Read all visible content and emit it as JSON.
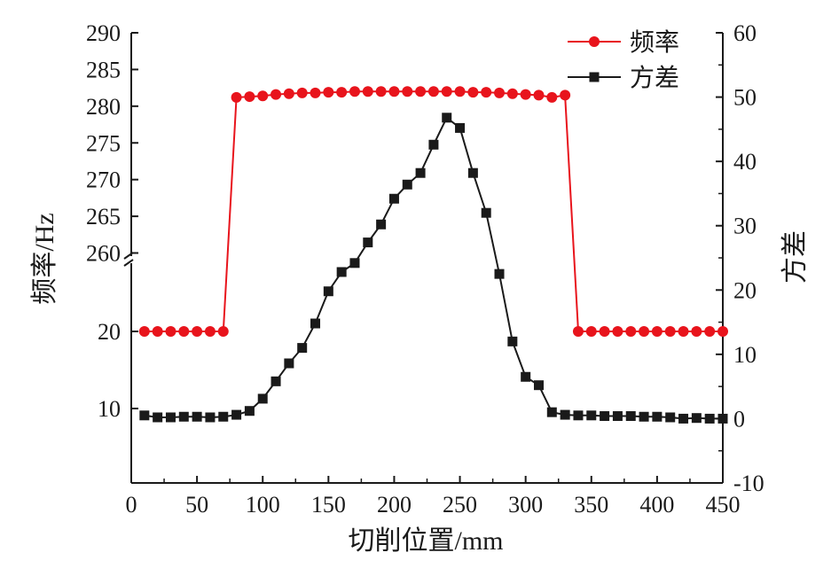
{
  "chart_data": {
    "type": "line",
    "xlabel": "切削位置/mm",
    "ylabel_left": "频率/Hz",
    "ylabel_right": "方差",
    "xlim": [
      0,
      450
    ],
    "x_ticks": [
      0,
      50,
      100,
      150,
      200,
      250,
      300,
      350,
      400,
      450
    ],
    "y_left_ticks": [
      10,
      20,
      260,
      265,
      270,
      275,
      280,
      285,
      290
    ],
    "y_left_axis_break": "between 20 and 260",
    "y_right_ticks": [
      -10,
      0,
      10,
      20,
      30,
      40,
      50,
      60
    ],
    "y_right_lim": [
      -10,
      60
    ],
    "grid": false,
    "legend_position": "top-right",
    "series": [
      {
        "name": "频率",
        "axis": "left",
        "color": "#e8141c",
        "marker": "circle",
        "x": [
          10,
          20,
          30,
          40,
          50,
          60,
          70,
          80,
          90,
          100,
          110,
          120,
          130,
          140,
          150,
          160,
          170,
          180,
          190,
          200,
          210,
          220,
          230,
          240,
          250,
          260,
          270,
          280,
          290,
          300,
          310,
          320,
          330,
          340,
          350,
          360,
          370,
          380,
          390,
          400,
          410,
          420,
          430,
          440,
          450
        ],
        "values": [
          20,
          20,
          20,
          20,
          20,
          20,
          20,
          281.2,
          281.3,
          281.4,
          281.6,
          281.7,
          281.8,
          281.8,
          281.9,
          281.9,
          282.0,
          282.0,
          282.0,
          282.0,
          282.0,
          282.0,
          282.0,
          282.0,
          282.0,
          281.9,
          281.9,
          281.8,
          281.7,
          281.6,
          281.5,
          281.2,
          281.5,
          20,
          20,
          20,
          20,
          20,
          20,
          20,
          20,
          20,
          20,
          20,
          20
        ]
      },
      {
        "name": "方差",
        "axis": "right",
        "color": "#1a1a1a",
        "marker": "square",
        "x": [
          10,
          20,
          30,
          40,
          50,
          60,
          70,
          80,
          90,
          100,
          110,
          120,
          130,
          140,
          150,
          160,
          170,
          180,
          190,
          200,
          210,
          220,
          230,
          240,
          250,
          260,
          270,
          280,
          290,
          300,
          310,
          320,
          330,
          340,
          350,
          360,
          370,
          380,
          390,
          400,
          410,
          420,
          430,
          440,
          450
        ],
        "values": [
          0.5,
          0.2,
          0.2,
          0.3,
          0.3,
          0.2,
          0.3,
          0.6,
          1.2,
          3.1,
          5.8,
          8.6,
          11.0,
          14.8,
          19.8,
          22.8,
          24.2,
          27.4,
          30.2,
          34.2,
          36.4,
          38.2,
          42.6,
          46.8,
          45.2,
          38.2,
          32.0,
          22.5,
          12.0,
          6.5,
          5.2,
          1.0,
          0.6,
          0.5,
          0.5,
          0.4,
          0.4,
          0.4,
          0.3,
          0.3,
          0.2,
          0.0,
          0.1,
          0.0,
          0.0
        ]
      }
    ]
  }
}
